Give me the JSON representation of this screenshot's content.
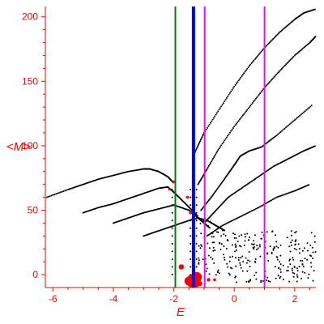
{
  "chart_data": {
    "type": "scatter",
    "title": "",
    "xlabel": "E",
    "ylabel": "<M>",
    "xlim": [
      -6.25,
      2.7
    ],
    "ylim": [
      -10,
      208
    ],
    "grid": false,
    "x_ticks": [
      -6,
      -4,
      -2,
      0,
      2
    ],
    "y_ticks": [
      0,
      50,
      100,
      150,
      200
    ],
    "colors": {
      "axis": "#ff0000",
      "points": "#000000",
      "highlight": "#ff0000",
      "line_green": "#008000",
      "line_blue": "#0000ff",
      "line_magenta": "#ff00ff"
    },
    "vertical_lines": [
      {
        "x": -1.95,
        "color": "#008000"
      },
      {
        "x": -1.35,
        "color": "#0000ff",
        "bold": true
      },
      {
        "x": -0.98,
        "color": "#ff00ff"
      },
      {
        "x": 1.0,
        "color": "#ff00ff"
      }
    ],
    "bands": [
      {
        "name": "",
        "x": [
          -6.2,
          -5.5,
          -5.0,
          -4.5,
          -4.0,
          -3.5,
          -3.0,
          -2.8,
          -2.5,
          -2.2,
          -2.0
        ],
        "y": [
          60,
          66,
          70,
          74,
          77,
          80,
          82,
          82,
          80,
          76,
          71
        ]
      },
      {
        "name": "",
        "x": [
          -5.0,
          -4.5,
          -4.0,
          -3.5,
          -3.0,
          -2.5,
          -2.2,
          -2.0,
          -1.7,
          -1.4,
          -1.2
        ],
        "y": [
          48,
          52,
          55,
          59,
          63,
          67,
          68,
          64,
          57,
          50,
          45
        ]
      },
      {
        "name": "",
        "x": [
          -4.0,
          -3.5,
          -3.0,
          -2.5,
          -2.0,
          -1.5,
          -1.2,
          -1.0,
          -0.8
        ],
        "y": [
          40,
          44,
          48,
          51,
          54,
          50,
          44,
          40,
          36
        ]
      },
      {
        "name": "",
        "x": [
          -3.0,
          -2.5,
          -2.0,
          -1.5,
          -1.2,
          -0.9,
          -0.6,
          -0.3
        ],
        "y": [
          30,
          34,
          38,
          42,
          44,
          42,
          38,
          34
        ]
      },
      {
        "name": "",
        "x": [
          -1.3,
          -1.0,
          -0.5,
          0.0,
          0.5,
          1.0,
          1.5,
          2.0,
          2.3,
          2.7
        ],
        "y": [
          95,
          110,
          128,
          146,
          162,
          176,
          188,
          198,
          203,
          206
        ]
      },
      {
        "name": "",
        "x": [
          -1.2,
          -0.9,
          -0.5,
          0.0,
          0.5,
          1.0,
          1.5,
          2.0,
          2.5,
          2.7
        ],
        "y": [
          70,
          82,
          98,
          115,
          130,
          145,
          158,
          170,
          180,
          185
        ]
      },
      {
        "name": "",
        "x": [
          -1.1,
          -0.7,
          -0.3,
          0.0,
          0.2,
          0.5,
          0.9,
          1.4,
          2.0,
          2.6
        ],
        "y": [
          50,
          62,
          75,
          85,
          92,
          96,
          99,
          108,
          120,
          132
        ]
      },
      {
        "name": "",
        "x": [
          -1.0,
          -0.6,
          -0.2,
          0.3,
          0.8,
          1.3,
          1.8,
          2.3,
          2.7
        ],
        "y": [
          40,
          50,
          60,
          68,
          76,
          84,
          90,
          96,
          100
        ]
      },
      {
        "name": "",
        "x": [
          -0.9,
          -0.4,
          0.2,
          0.8,
          1.4,
          2.0,
          2.5
        ],
        "y": [
          30,
          38,
          45,
          52,
          60,
          65,
          70
        ]
      }
    ],
    "red_points": [
      {
        "x": -1.35,
        "y": -5,
        "size": 4
      },
      {
        "x": -1.25,
        "y": -2,
        "size": 3
      },
      {
        "x": -1.5,
        "y": -5,
        "size": 2.5
      },
      {
        "x": -1.75,
        "y": 6,
        "size": 1.5
      },
      {
        "x": -1.15,
        "y": -7,
        "size": 1.5
      },
      {
        "x": -0.85,
        "y": -4,
        "size": 1
      },
      {
        "x": -0.65,
        "y": -4,
        "size": 0.8
      },
      {
        "x": -2.0,
        "y": 72,
        "size": 0.8
      },
      {
        "x": -1.55,
        "y": 60,
        "size": 0.8
      },
      {
        "x": -1.45,
        "y": 48,
        "size": 0.8
      },
      {
        "x": -2.15,
        "y": 66,
        "size": 0.6
      }
    ]
  }
}
